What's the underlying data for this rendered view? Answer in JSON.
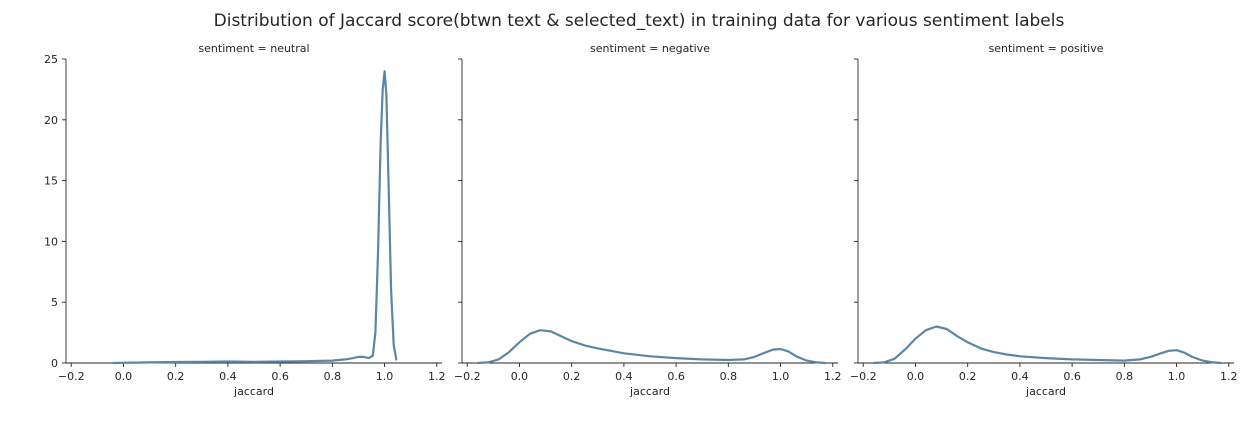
{
  "figure": {
    "title": "Distribution of Jaccard score(btwn text & selected_text) in training data for various sentiment labels"
  },
  "colors": {
    "line": "#5a87a8",
    "axis": "#262626",
    "background": "#ffffff"
  },
  "chart_data": [
    {
      "type": "line",
      "title": "sentiment = neutral",
      "xlabel": "jaccard",
      "ylabel": "",
      "xlim": [
        -0.22,
        1.22
      ],
      "ylim": [
        0,
        25
      ],
      "xticks": [
        -0.2,
        0.0,
        0.2,
        0.4,
        0.6,
        0.8,
        1.0,
        1.2
      ],
      "xtick_labels": [
        "−0.2",
        "0.0",
        "0.2",
        "0.4",
        "0.6",
        "0.8",
        "1.0",
        "1.2"
      ],
      "yticks": [
        0,
        5,
        10,
        15,
        20,
        25
      ],
      "ytick_labels": [
        "0",
        "5",
        "10",
        "15",
        "20",
        "25"
      ],
      "series": [
        {
          "x": [
            -0.04,
            0.0,
            0.1,
            0.2,
            0.3,
            0.4,
            0.5,
            0.6,
            0.7,
            0.8,
            0.85,
            0.88,
            0.9,
            0.92,
            0.94,
            0.955,
            0.965,
            0.975,
            0.985,
            0.993,
            1.0,
            1.007,
            1.015,
            1.025,
            1.035,
            1.045
          ],
          "y": [
            0.0,
            0.02,
            0.05,
            0.08,
            0.1,
            0.12,
            0.1,
            0.12,
            0.15,
            0.2,
            0.3,
            0.4,
            0.5,
            0.5,
            0.4,
            0.6,
            2.5,
            9.0,
            18.0,
            22.5,
            24.0,
            22.0,
            15.0,
            6.0,
            1.5,
            0.3
          ]
        }
      ]
    },
    {
      "type": "line",
      "title": "sentiment = negative",
      "xlabel": "jaccard",
      "ylabel": "",
      "xlim": [
        -0.22,
        1.22
      ],
      "ylim": [
        0,
        25
      ],
      "xticks": [
        -0.2,
        0.0,
        0.2,
        0.4,
        0.6,
        0.8,
        1.0,
        1.2
      ],
      "xtick_labels": [
        "−0.2",
        "0.0",
        "0.2",
        "0.4",
        "0.6",
        "0.8",
        "1.0",
        "1.2"
      ],
      "yticks": [
        0,
        5,
        10,
        15,
        20,
        25
      ],
      "ytick_labels": [
        "",
        "",
        "",
        "",
        "",
        ""
      ],
      "series": [
        {
          "x": [
            -0.16,
            -0.12,
            -0.08,
            -0.04,
            0.0,
            0.04,
            0.08,
            0.12,
            0.16,
            0.2,
            0.25,
            0.3,
            0.35,
            0.4,
            0.5,
            0.6,
            0.7,
            0.8,
            0.86,
            0.9,
            0.94,
            0.97,
            1.0,
            1.03,
            1.06,
            1.1,
            1.14,
            1.17
          ],
          "y": [
            0.0,
            0.05,
            0.3,
            0.9,
            1.7,
            2.4,
            2.7,
            2.6,
            2.2,
            1.8,
            1.45,
            1.2,
            1.0,
            0.8,
            0.55,
            0.4,
            0.3,
            0.25,
            0.3,
            0.5,
            0.85,
            1.1,
            1.15,
            0.95,
            0.55,
            0.2,
            0.05,
            0.0
          ]
        }
      ]
    },
    {
      "type": "line",
      "title": "sentiment = positive",
      "xlabel": "jaccard",
      "ylabel": "",
      "xlim": [
        -0.22,
        1.22
      ],
      "ylim": [
        0,
        25
      ],
      "xticks": [
        -0.2,
        0.0,
        0.2,
        0.4,
        0.6,
        0.8,
        1.0,
        1.2
      ],
      "xtick_labels": [
        "−0.2",
        "0.0",
        "0.2",
        "0.4",
        "0.6",
        "0.8",
        "1.0",
        "1.2"
      ],
      "yticks": [
        0,
        5,
        10,
        15,
        20,
        25
      ],
      "ytick_labels": [
        "",
        "",
        "",
        "",
        "",
        ""
      ],
      "series": [
        {
          "x": [
            -0.16,
            -0.12,
            -0.08,
            -0.04,
            0.0,
            0.04,
            0.08,
            0.12,
            0.16,
            0.2,
            0.25,
            0.3,
            0.35,
            0.4,
            0.5,
            0.6,
            0.7,
            0.8,
            0.86,
            0.9,
            0.94,
            0.97,
            1.0,
            1.03,
            1.06,
            1.1,
            1.14,
            1.17
          ],
          "y": [
            0.0,
            0.05,
            0.35,
            1.1,
            2.0,
            2.7,
            3.0,
            2.8,
            2.2,
            1.7,
            1.2,
            0.9,
            0.7,
            0.55,
            0.4,
            0.3,
            0.25,
            0.2,
            0.3,
            0.5,
            0.8,
            1.0,
            1.05,
            0.85,
            0.5,
            0.2,
            0.05,
            0.0
          ]
        }
      ]
    }
  ]
}
